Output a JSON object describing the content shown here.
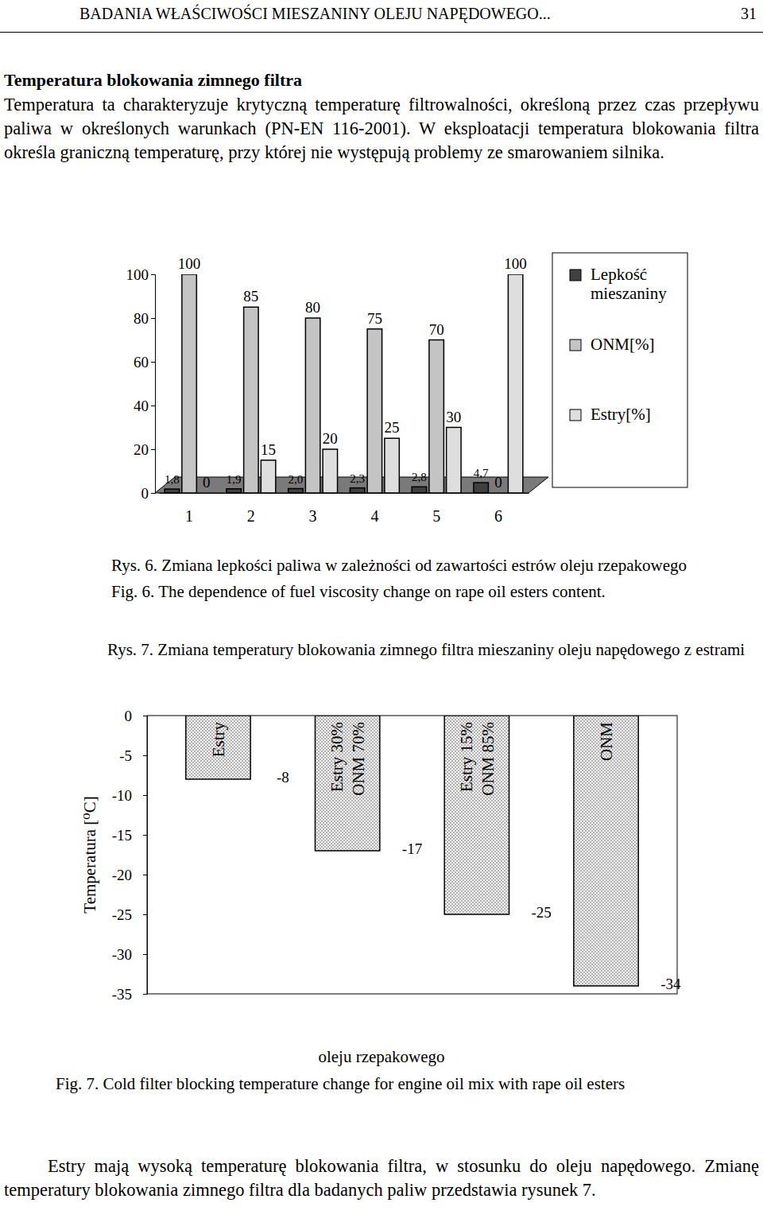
{
  "header": {
    "title": "BADANIA WŁAŚCIWOŚCI MIESZANINY OLEJU NAPĘDOWEGO...",
    "page": 31
  },
  "section": {
    "heading": "Temperatura blokowania zimnego filtra",
    "text": "Temperatura ta charakteryzuje krytyczną temperaturę filtrowalności, określoną przez czas przepływu paliwa w określonych warunkach (PN-EN 116-2001). W eksploatacji temperatura blokowania filtra określa graniczną temperaturę, przy której nie występują problemy ze smarowaniem silnika."
  },
  "chart_data": [
    {
      "type": "bar",
      "title": [
        "Rys. 6. Zmiana lepkości paliwa w zależności od zawartości estrów oleju rzepakowego"
      ],
      "subtitle": "Fig. 6. The dependence of fuel viscosity change on rape oil esters content.",
      "categories": [
        "1",
        "2",
        "3",
        "4",
        "5",
        "6"
      ],
      "series": [
        {
          "name": "Lepkość mieszaniny",
          "color": "#404040",
          "values": [
            1.8,
            1.9,
            2.0,
            2.3,
            2.8,
            4.7
          ],
          "value_labels": [
            "1,8",
            "1,9",
            "2,0",
            "2,3",
            "2,8",
            "4,7"
          ]
        },
        {
          "name": "ONM[%]",
          "color": "#c4c4c4",
          "values": [
            100,
            85,
            80,
            75,
            70,
            0
          ]
        },
        {
          "name": "Estry[%]",
          "color": "#dedede",
          "values": [
            0,
            15,
            20,
            25,
            30,
            100
          ]
        }
      ],
      "ylim": [
        0,
        100
      ],
      "yticks": [
        0,
        20,
        40,
        60,
        80,
        100
      ],
      "grid": false,
      "legend": "right",
      "data_labels": true
    },
    {
      "type": "bar",
      "title": [
        "Rys. 7. Zmiana temperatury blokowania zimnego filtra mieszaniny oleju napędowego z estrami",
        "oleju rzepakowego"
      ],
      "subtitle": "Fig. 7. Cold filter blocking temperature change for engine oil mix with rape oil esters",
      "y_label": "Temperatura [⁰C]",
      "categories": [
        "Estry",
        "Estry 30%\nONM 70%",
        "Estry 15%\nONM 85%",
        "ONM"
      ],
      "values": [
        -8,
        -17,
        -25,
        -34
      ],
      "color": "#b4b4b4",
      "ylim": [
        -35,
        0
      ],
      "yticks": [
        0,
        -5,
        -10,
        -15,
        -20,
        -25,
        -30,
        -35
      ],
      "grid": false,
      "data_labels": true
    }
  ],
  "closing": {
    "text": "Estry mają wysoką temperaturę blokowania filtra, w stosunku do oleju napędowego. Zmianę temperatury blokowania zimnego filtra dla badanych paliw przedstawia rysunek 7."
  }
}
